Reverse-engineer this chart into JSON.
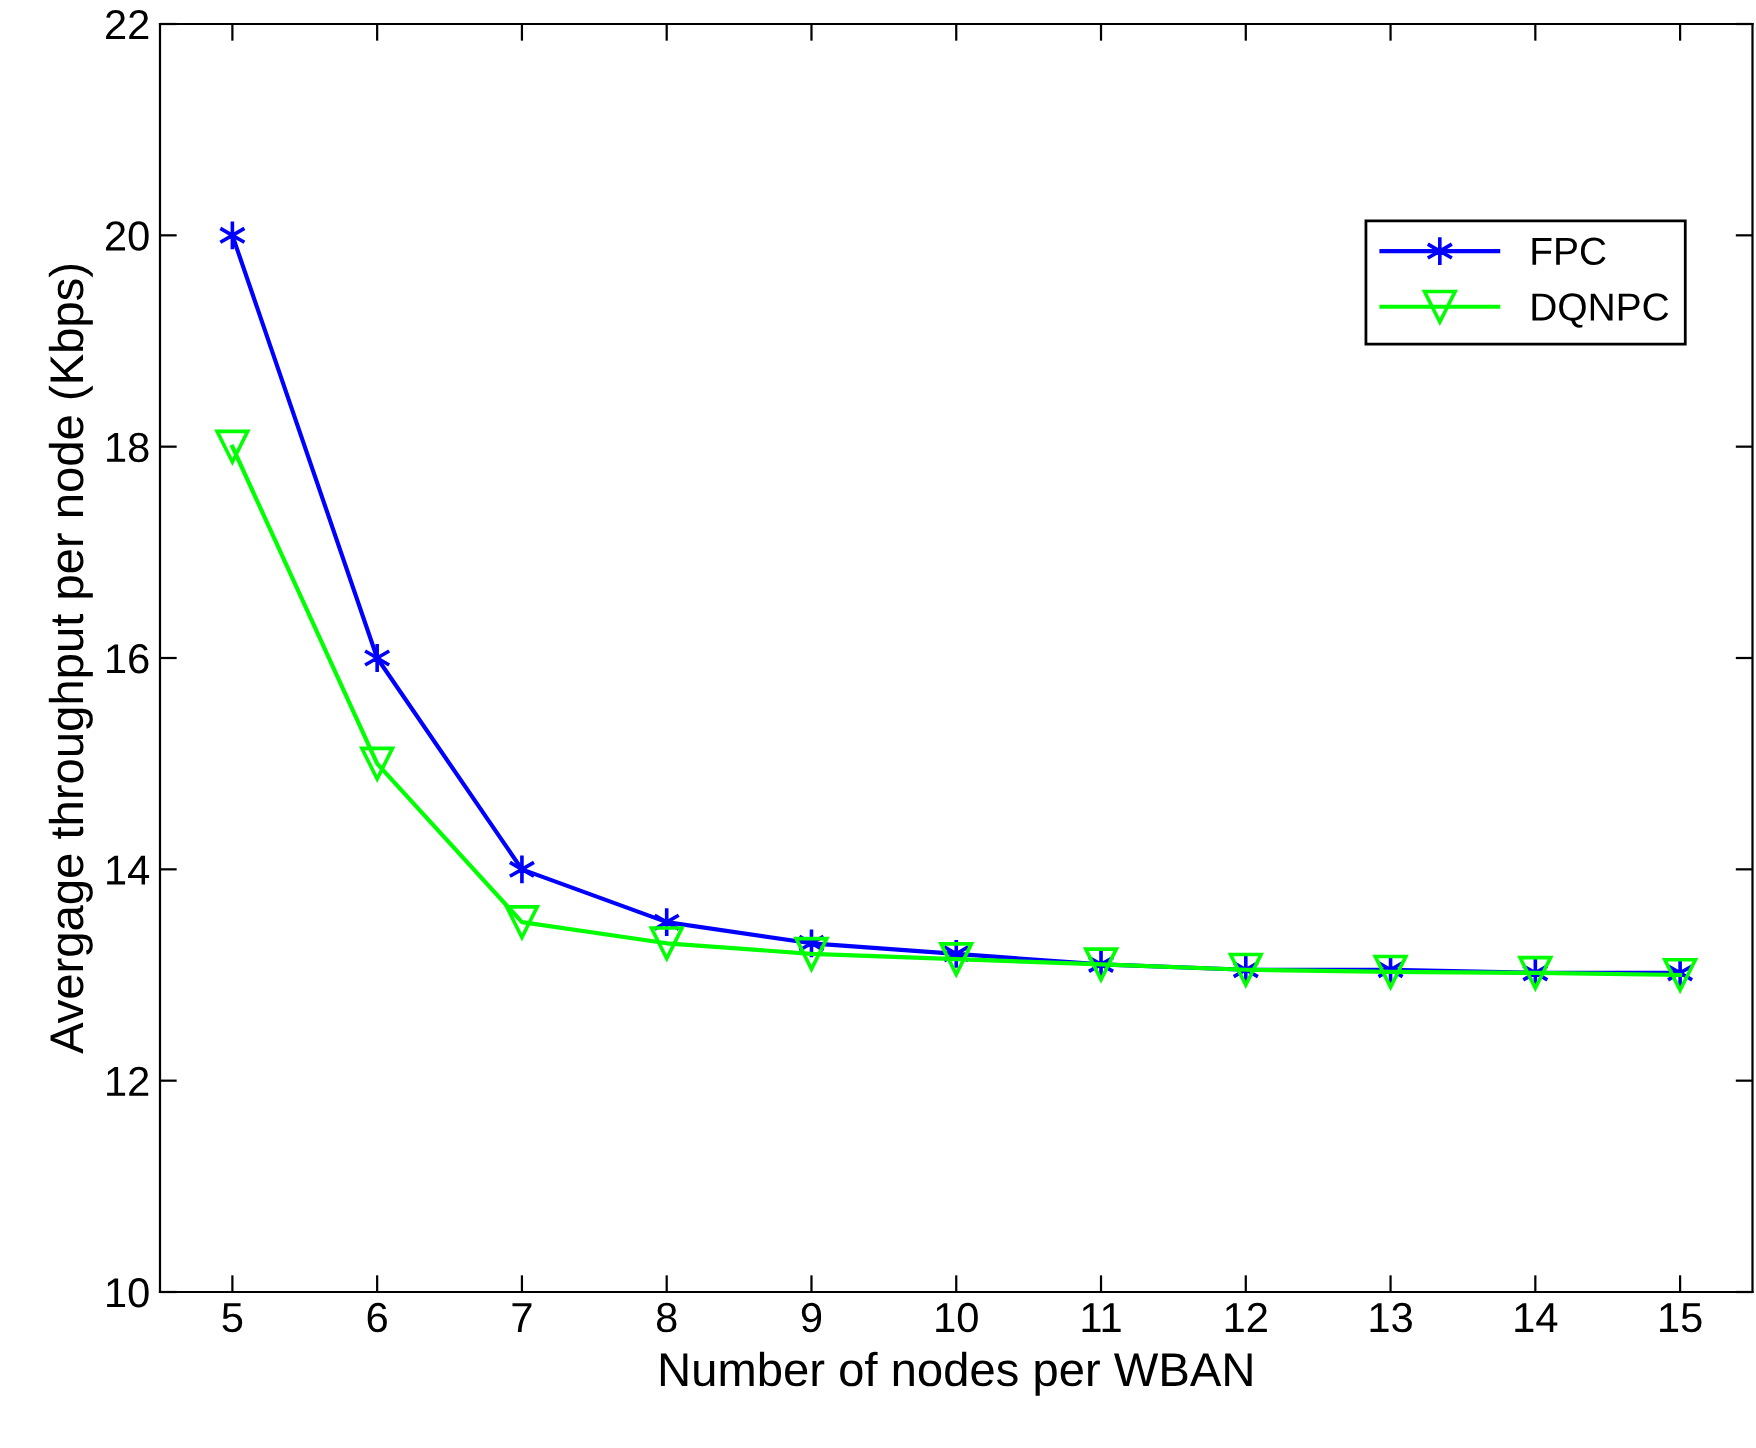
{
  "chart_data": {
    "type": "line",
    "xlabel": "Number of nodes per WBAN",
    "ylabel": "Avergage throughput per node (Kbps)",
    "x": [
      5,
      6,
      7,
      8,
      9,
      10,
      11,
      12,
      13,
      14,
      15
    ],
    "series": [
      {
        "name": "FPC",
        "color": "#0000ff",
        "marker": "cross",
        "values": [
          20,
          16,
          14,
          13.5,
          13.3,
          13.2,
          13.1,
          13.05,
          13.05,
          13.02,
          13.02
        ]
      },
      {
        "name": "DQNPC",
        "color": "#00ff00",
        "marker": "triangle",
        "values": [
          18,
          15,
          13.5,
          13.3,
          13.2,
          13.15,
          13.1,
          13.05,
          13.03,
          13.02,
          13.0
        ]
      }
    ],
    "xlim": [
      4.5,
      15.5
    ],
    "xticks": [
      5,
      6,
      7,
      8,
      9,
      10,
      11,
      12,
      13,
      14,
      15
    ],
    "ylim": [
      10,
      22
    ],
    "yticks": [
      10,
      12,
      14,
      16,
      18,
      20,
      22
    ],
    "grid": false,
    "legend": "top right",
    "line_style": "solid"
  }
}
